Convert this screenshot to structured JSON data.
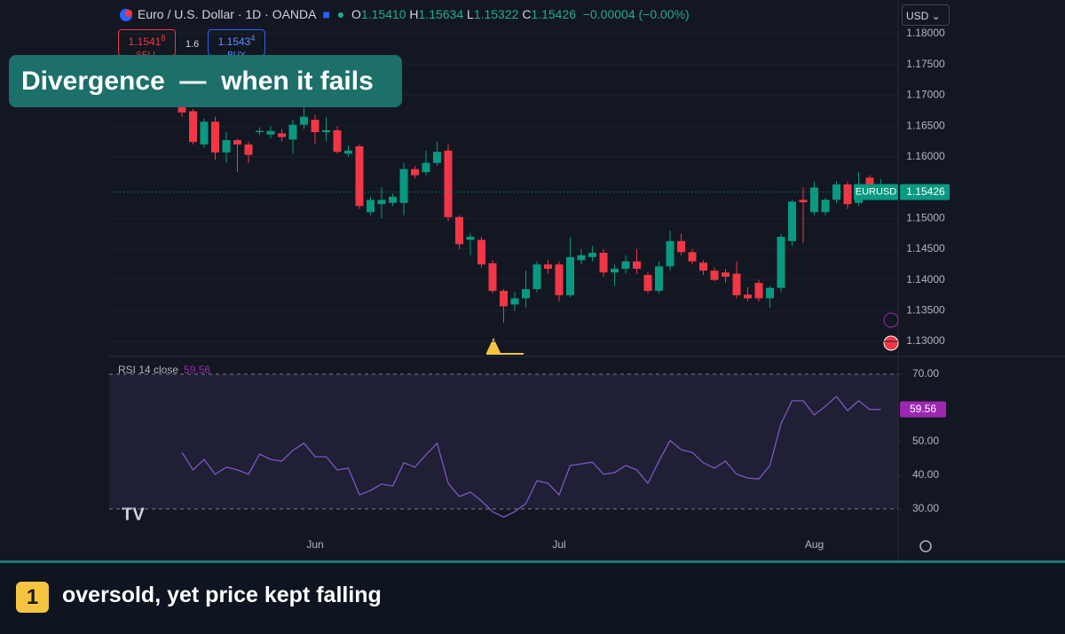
{
  "header": {
    "symbol": "Euro / U.S. Dollar · 1D · OANDA",
    "ohlc": [
      {
        "key": "O",
        "value": "1.15410"
      },
      {
        "key": "H",
        "value": "1.15634"
      },
      {
        "key": "L",
        "value": "1.15322"
      },
      {
        "key": "C",
        "value": "1.15426"
      }
    ],
    "change": "−0.00004 (−0.00%)",
    "currency": "USD"
  },
  "trade": {
    "sell_price": "1.1541",
    "sell_sup": "8",
    "sell": "SELL",
    "spread": "1.6",
    "buy_price": "1.1543",
    "buy_sup": "4",
    "buy": "BUY"
  },
  "overlay_title": "Divergence  —  when it fails",
  "chart_data": [
    {
      "type": "candlestick",
      "symbol_tag": "EURUSD",
      "last_label": "1.15426",
      "up_color": "#089981",
      "down_color": "#f23645",
      "open": [
        1.1685,
        1.1674,
        1.162,
        1.1657,
        1.1607,
        1.1627,
        1.162,
        1.164,
        1.1636,
        1.1638,
        1.1628,
        1.1652,
        1.166,
        1.164,
        1.1643,
        1.1605,
        1.1617,
        1.151,
        1.1523,
        1.1525,
        1.1525,
        1.158,
        1.1575,
        1.159,
        1.161,
        1.1502,
        1.1465,
        1.1465,
        1.1427,
        1.1382,
        1.136,
        1.137,
        1.1385,
        1.1425,
        1.1425,
        1.1375,
        1.1432,
        1.1437,
        1.1444,
        1.1412,
        1.1418,
        1.143,
        1.1408,
        1.1382,
        1.1422,
        1.1463,
        1.1445,
        1.1428,
        1.1415,
        1.1412,
        1.141,
        1.1376,
        1.1395,
        1.137,
        1.1387,
        1.1463,
        1.153,
        1.151,
        1.151,
        1.153,
        1.1555,
        1.1525,
        1.1566,
        1.1541
      ],
      "high": [
        1.1695,
        1.1678,
        1.1662,
        1.1665,
        1.164,
        1.163,
        1.1625,
        1.1648,
        1.165,
        1.1645,
        1.166,
        1.169,
        1.1668,
        1.1665,
        1.165,
        1.1618,
        1.162,
        1.1535,
        1.155,
        1.154,
        1.159,
        1.1585,
        1.161,
        1.1625,
        1.162,
        1.1505,
        1.1475,
        1.147,
        1.1432,
        1.1385,
        1.138,
        1.1415,
        1.143,
        1.1432,
        1.143,
        1.147,
        1.145,
        1.1455,
        1.145,
        1.1425,
        1.144,
        1.145,
        1.1412,
        1.143,
        1.148,
        1.1475,
        1.145,
        1.1432,
        1.142,
        1.1418,
        1.143,
        1.1388,
        1.14,
        1.139,
        1.1475,
        1.153,
        1.155,
        1.156,
        1.1533,
        1.156,
        1.156,
        1.1575,
        1.157,
        1.15634
      ],
      "low": [
        1.1665,
        1.162,
        1.1615,
        1.1595,
        1.159,
        1.1575,
        1.159,
        1.1635,
        1.163,
        1.1625,
        1.1605,
        1.1645,
        1.162,
        1.1625,
        1.1605,
        1.16,
        1.1515,
        1.1505,
        1.15,
        1.152,
        1.1505,
        1.1565,
        1.157,
        1.1585,
        1.1495,
        1.145,
        1.144,
        1.142,
        1.1378,
        1.133,
        1.135,
        1.1355,
        1.138,
        1.141,
        1.1365,
        1.1372,
        1.1425,
        1.143,
        1.1405,
        1.139,
        1.141,
        1.141,
        1.1378,
        1.1378,
        1.1415,
        1.144,
        1.1425,
        1.1408,
        1.1398,
        1.1395,
        1.137,
        1.1365,
        1.1365,
        1.1355,
        1.138,
        1.1455,
        1.146,
        1.1505,
        1.1505,
        1.1525,
        1.1515,
        1.152,
        1.1545,
        1.15322
      ],
      "close": [
        1.1672,
        1.1624,
        1.1657,
        1.1607,
        1.1627,
        1.162,
        1.1603,
        1.1642,
        1.1642,
        1.1632,
        1.1652,
        1.1665,
        1.164,
        1.1643,
        1.1608,
        1.161,
        1.152,
        1.153,
        1.153,
        1.1535,
        1.158,
        1.157,
        1.159,
        1.1608,
        1.1502,
        1.1458,
        1.147,
        1.1425,
        1.1382,
        1.1357,
        1.137,
        1.1385,
        1.1425,
        1.1418,
        1.1375,
        1.1437,
        1.144,
        1.1444,
        1.1412,
        1.1418,
        1.143,
        1.1418,
        1.1382,
        1.1422,
        1.1463,
        1.1445,
        1.143,
        1.1415,
        1.14,
        1.1405,
        1.1375,
        1.137,
        1.137,
        1.1387,
        1.147,
        1.1527,
        1.1526,
        1.155,
        1.153,
        1.1555,
        1.1523,
        1.1555,
        1.1552,
        1.15426
      ],
      "ylim": [
        1.12784,
        1.18115
      ],
      "yticks": [
        {
          "value": 1.13,
          "label": "1.13000"
        },
        {
          "value": 1.135,
          "label": "1.13500"
        },
        {
          "value": 1.14,
          "label": "1.14000"
        },
        {
          "value": 1.145,
          "label": "1.14500"
        },
        {
          "value": 1.15,
          "label": "1.15000"
        },
        {
          "value": 1.16,
          "label": "1.16000"
        },
        {
          "value": 1.165,
          "label": "1.16500"
        },
        {
          "value": 1.17,
          "label": "1.17000"
        },
        {
          "value": 1.175,
          "label": "1.17500"
        },
        {
          "value": 1.18,
          "label": "1.18000"
        }
      ],
      "grid": true
    },
    {
      "type": "line",
      "title": "RSI 14 close",
      "last_label": "59.56",
      "levels": [
        30,
        70
      ],
      "categories": [
        null,
        null,
        null,
        null,
        null,
        null,
        null,
        null,
        null,
        null,
        null,
        null,
        "Jun",
        null,
        null,
        null,
        null,
        null,
        null,
        null,
        null,
        null,
        null,
        null,
        null,
        null,
        null,
        null,
        null,
        null,
        null,
        null,
        null,
        null,
        "Jul",
        null,
        null,
        null,
        null,
        null,
        null,
        null,
        null,
        null,
        null,
        null,
        null,
        null,
        null,
        null,
        null,
        null,
        null,
        null,
        null,
        null,
        null,
        "Aug",
        null,
        null,
        null,
        null,
        null,
        null
      ],
      "series": [
        {
          "name": "RSI",
          "color": "#7e57c2",
          "values": [
            46.8,
            41.6,
            44.7,
            40.3,
            42.4,
            41.6,
            40.3,
            46.3,
            44.7,
            44.2,
            47.4,
            49.5,
            45.5,
            45.5,
            41.6,
            42.1,
            34.2,
            35.5,
            37.4,
            36.8,
            43.7,
            42.4,
            46.1,
            49.5,
            37.6,
            33.7,
            35.0,
            32.4,
            29.2,
            27.6,
            29.2,
            31.6,
            38.4,
            37.6,
            34.2,
            42.9,
            43.4,
            43.9,
            40.3,
            40.8,
            42.9,
            41.6,
            37.6,
            44.2,
            50.3,
            47.6,
            46.8,
            43.7,
            42.1,
            44.2,
            40.3,
            39.2,
            38.9,
            42.9,
            55.3,
            62.1,
            62.1,
            57.9,
            60.5,
            63.4,
            59.2,
            62.1,
            59.5,
            59.56
          ]
        }
      ],
      "ylim": [
        23.16,
        75.26
      ],
      "yticks": [
        {
          "value": 30,
          "label": "30.00"
        },
        {
          "value": 40,
          "label": "40.00"
        },
        {
          "value": 50,
          "label": "50.00"
        },
        {
          "value": 70,
          "label": "70.00"
        }
      ]
    }
  ],
  "caption": {
    "number": "1",
    "text": "oversold, yet price kept falling"
  }
}
